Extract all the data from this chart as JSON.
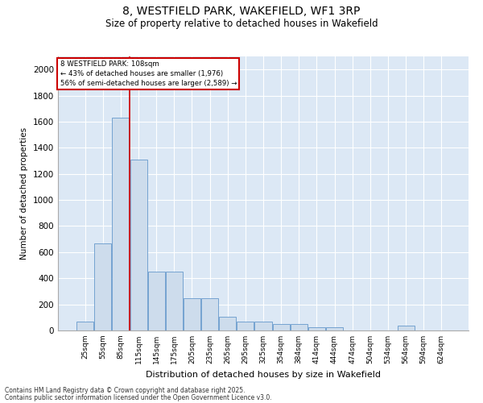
{
  "title_line1": "8, WESTFIELD PARK, WAKEFIELD, WF1 3RP",
  "title_line2": "Size of property relative to detached houses in Wakefield",
  "xlabel": "Distribution of detached houses by size in Wakefield",
  "ylabel": "Number of detached properties",
  "categories": [
    "25sqm",
    "55sqm",
    "85sqm",
    "115sqm",
    "145sqm",
    "175sqm",
    "205sqm",
    "235sqm",
    "265sqm",
    "295sqm",
    "325sqm",
    "354sqm",
    "384sqm",
    "414sqm",
    "444sqm",
    "474sqm",
    "504sqm",
    "534sqm",
    "564sqm",
    "594sqm",
    "624sqm"
  ],
  "values": [
    70,
    670,
    1630,
    1310,
    450,
    450,
    245,
    245,
    105,
    70,
    70,
    50,
    50,
    25,
    25,
    0,
    0,
    0,
    40,
    0,
    0
  ],
  "bar_color": "#cddcec",
  "bar_edge_color": "#6699cc",
  "bg_color": "#dce8f5",
  "grid_color": "#ffffff",
  "vline_color": "#cc0000",
  "vline_index": 2,
  "annotation_text": "8 WESTFIELD PARK: 108sqm\n← 43% of detached houses are smaller (1,976)\n56% of semi-detached houses are larger (2,589) →",
  "annotation_box_color": "#ffffff",
  "annotation_box_edge": "#cc0000",
  "footer_line1": "Contains HM Land Registry data © Crown copyright and database right 2025.",
  "footer_line2": "Contains public sector information licensed under the Open Government Licence v3.0.",
  "ylim": [
    0,
    2100
  ],
  "yticks": [
    0,
    200,
    400,
    600,
    800,
    1000,
    1200,
    1400,
    1600,
    1800,
    2000
  ]
}
